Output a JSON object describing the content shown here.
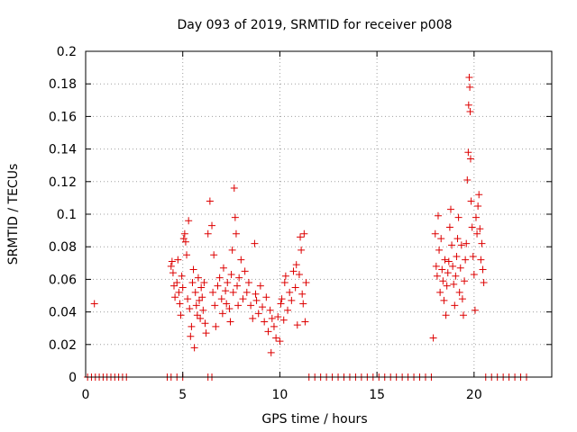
{
  "chart_data": {
    "type": "scatter",
    "title": "Day 093 of 2019, SRMTID for receiver p008",
    "xlabel": "GPS time / hours",
    "ylabel": "SRMTID / TECUs",
    "xlim": [
      0,
      24
    ],
    "ylim": [
      0,
      0.2
    ],
    "x_ticks": [
      0,
      5,
      10,
      15,
      20
    ],
    "x_tick_labels": [
      "0",
      "5",
      "10",
      "15",
      "20"
    ],
    "y_ticks": [
      0,
      0.02,
      0.04,
      0.06,
      0.08,
      0.1,
      0.12,
      0.14,
      0.16,
      0.18,
      0.2
    ],
    "y_tick_labels": [
      "0",
      "0.02",
      "0.04",
      "0.06",
      "0.08",
      "0.1",
      "0.12",
      "0.14",
      "0.16",
      "0.18",
      "0.2"
    ],
    "grid": true,
    "marker": "plus",
    "colors": {
      "series": "#dd0000",
      "grid": "#a0a0a0",
      "axis": "#000000"
    },
    "series": [
      {
        "name": "SRMTID",
        "points": [
          [
            0.1,
            0
          ],
          [
            0.3,
            0
          ],
          [
            0.5,
            0
          ],
          [
            0.7,
            0
          ],
          [
            0.9,
            0
          ],
          [
            1.1,
            0
          ],
          [
            1.3,
            0
          ],
          [
            1.5,
            0
          ],
          [
            1.7,
            0
          ],
          [
            1.9,
            0
          ],
          [
            2.1,
            0
          ],
          [
            0.45,
            0.045
          ],
          [
            4.2,
            0
          ],
          [
            4.4,
            0
          ],
          [
            4.7,
            0
          ],
          [
            5.0,
            0
          ],
          [
            6.3,
            0
          ],
          [
            6.5,
            0
          ],
          [
            4.4,
            0.068
          ],
          [
            4.45,
            0.071
          ],
          [
            4.5,
            0.064
          ],
          [
            4.55,
            0.056
          ],
          [
            4.6,
            0.049
          ],
          [
            4.7,
            0.058
          ],
          [
            4.75,
            0.072
          ],
          [
            4.8,
            0.052
          ],
          [
            4.85,
            0.045
          ],
          [
            4.9,
            0.038
          ],
          [
            4.95,
            0.062
          ],
          [
            5.0,
            0.055
          ],
          [
            5.05,
            0.085
          ],
          [
            5.1,
            0.088
          ],
          [
            5.15,
            0.083
          ],
          [
            5.2,
            0.075
          ],
          [
            5.25,
            0.048
          ],
          [
            5.3,
            0.096
          ],
          [
            5.35,
            0.042
          ],
          [
            5.4,
            0.025
          ],
          [
            5.45,
            0.031
          ],
          [
            5.5,
            0.058
          ],
          [
            5.55,
            0.066
          ],
          [
            5.6,
            0.018
          ],
          [
            5.65,
            0.052
          ],
          [
            5.7,
            0.044
          ],
          [
            5.75,
            0.038
          ],
          [
            5.8,
            0.061
          ],
          [
            5.85,
            0.047
          ],
          [
            5.9,
            0.036
          ],
          [
            5.95,
            0.055
          ],
          [
            6.0,
            0.049
          ],
          [
            6.05,
            0.041
          ],
          [
            6.1,
            0.058
          ],
          [
            6.15,
            0.033
          ],
          [
            6.2,
            0.027
          ],
          [
            6.3,
            0.088
          ],
          [
            6.4,
            0.108
          ],
          [
            6.5,
            0.093
          ],
          [
            6.55,
            0.052
          ],
          [
            6.6,
            0.075
          ],
          [
            6.65,
            0.044
          ],
          [
            6.7,
            0.031
          ],
          [
            6.8,
            0.056
          ],
          [
            6.9,
            0.061
          ],
          [
            7.0,
            0.048
          ],
          [
            7.05,
            0.039
          ],
          [
            7.1,
            0.067
          ],
          [
            7.2,
            0.053
          ],
          [
            7.25,
            0.045
          ],
          [
            7.3,
            0.058
          ],
          [
            7.4,
            0.042
          ],
          [
            7.45,
            0.034
          ],
          [
            7.5,
            0.063
          ],
          [
            7.55,
            0.078
          ],
          [
            7.6,
            0.052
          ],
          [
            7.65,
            0.116
          ],
          [
            7.7,
            0.098
          ],
          [
            7.75,
            0.088
          ],
          [
            7.8,
            0.056
          ],
          [
            7.85,
            0.044
          ],
          [
            7.9,
            0.061
          ],
          [
            8.0,
            0.072
          ],
          [
            8.1,
            0.048
          ],
          [
            8.2,
            0.065
          ],
          [
            8.3,
            0.052
          ],
          [
            8.4,
            0.058
          ],
          [
            8.5,
            0.044
          ],
          [
            8.6,
            0.036
          ],
          [
            8.7,
            0.082
          ],
          [
            8.75,
            0.051
          ],
          [
            8.8,
            0.047
          ],
          [
            8.9,
            0.039
          ],
          [
            9.0,
            0.056
          ],
          [
            9.1,
            0.043
          ],
          [
            9.2,
            0.034
          ],
          [
            9.3,
            0.049
          ],
          [
            9.4,
            0.028
          ],
          [
            9.5,
            0.041
          ],
          [
            9.55,
            0.015
          ],
          [
            9.6,
            0.036
          ],
          [
            9.7,
            0.031
          ],
          [
            9.8,
            0.024
          ],
          [
            9.9,
            0.037
          ],
          [
            10.0,
            0.022
          ],
          [
            10.05,
            0.045
          ],
          [
            10.1,
            0.048
          ],
          [
            10.2,
            0.035
          ],
          [
            10.25,
            0.058
          ],
          [
            10.3,
            0.062
          ],
          [
            10.4,
            0.041
          ],
          [
            10.5,
            0.052
          ],
          [
            10.6,
            0.047
          ],
          [
            10.7,
            0.065
          ],
          [
            10.8,
            0.055
          ],
          [
            10.85,
            0.069
          ],
          [
            10.9,
            0.032
          ],
          [
            11.0,
            0.063
          ],
          [
            11.05,
            0.086
          ],
          [
            11.1,
            0.078
          ],
          [
            11.15,
            0.051
          ],
          [
            11.2,
            0.045
          ],
          [
            11.25,
            0.088
          ],
          [
            11.3,
            0.034
          ],
          [
            11.35,
            0.058
          ],
          [
            11.5,
            0
          ],
          [
            11.8,
            0
          ],
          [
            12.1,
            0
          ],
          [
            12.4,
            0
          ],
          [
            12.7,
            0
          ],
          [
            13.0,
            0
          ],
          [
            13.3,
            0
          ],
          [
            13.6,
            0
          ],
          [
            13.9,
            0
          ],
          [
            14.2,
            0
          ],
          [
            14.5,
            0
          ],
          [
            14.8,
            0
          ],
          [
            15.1,
            0
          ],
          [
            15.4,
            0
          ],
          [
            15.7,
            0
          ],
          [
            16.0,
            0
          ],
          [
            16.3,
            0
          ],
          [
            16.6,
            0
          ],
          [
            16.9,
            0
          ],
          [
            17.2,
            0
          ],
          [
            17.5,
            0
          ],
          [
            17.8,
            0
          ],
          [
            17.9,
            0.024
          ],
          [
            18.0,
            0.088
          ],
          [
            18.05,
            0.068
          ],
          [
            18.1,
            0.062
          ],
          [
            18.15,
            0.099
          ],
          [
            18.2,
            0.078
          ],
          [
            18.25,
            0.052
          ],
          [
            18.3,
            0.085
          ],
          [
            18.35,
            0.066
          ],
          [
            18.4,
            0.059
          ],
          [
            18.45,
            0.047
          ],
          [
            18.5,
            0.072
          ],
          [
            18.55,
            0.038
          ],
          [
            18.6,
            0.056
          ],
          [
            18.65,
            0.064
          ],
          [
            18.7,
            0.071
          ],
          [
            18.75,
            0.092
          ],
          [
            18.8,
            0.103
          ],
          [
            18.85,
            0.081
          ],
          [
            18.9,
            0.068
          ],
          [
            18.95,
            0.057
          ],
          [
            19.0,
            0.044
          ],
          [
            19.05,
            0.062
          ],
          [
            19.1,
            0.074
          ],
          [
            19.15,
            0.085
          ],
          [
            19.2,
            0.098
          ],
          [
            19.25,
            0.052
          ],
          [
            19.3,
            0.067
          ],
          [
            19.35,
            0.081
          ],
          [
            19.4,
            0.048
          ],
          [
            19.45,
            0.038
          ],
          [
            19.5,
            0.059
          ],
          [
            19.55,
            0.072
          ],
          [
            19.6,
            0.082
          ],
          [
            19.65,
            0.121
          ],
          [
            19.7,
            0.138
          ],
          [
            19.72,
            0.167
          ],
          [
            19.75,
            0.184
          ],
          [
            19.78,
            0.178
          ],
          [
            19.8,
            0.163
          ],
          [
            19.82,
            0.134
          ],
          [
            19.85,
            0.108
          ],
          [
            19.9,
            0.092
          ],
          [
            19.95,
            0.074
          ],
          [
            20.0,
            0.063
          ],
          [
            20.05,
            0.041
          ],
          [
            20.1,
            0.098
          ],
          [
            20.15,
            0.088
          ],
          [
            20.2,
            0.105
          ],
          [
            20.25,
            0.112
          ],
          [
            20.3,
            0.091
          ],
          [
            20.35,
            0.072
          ],
          [
            20.4,
            0.082
          ],
          [
            20.45,
            0.066
          ],
          [
            20.5,
            0.058
          ],
          [
            20.6,
            0
          ],
          [
            20.9,
            0
          ],
          [
            21.2,
            0
          ],
          [
            21.5,
            0
          ],
          [
            21.8,
            0
          ],
          [
            22.1,
            0
          ],
          [
            22.4,
            0
          ],
          [
            22.7,
            0
          ]
        ]
      }
    ]
  }
}
